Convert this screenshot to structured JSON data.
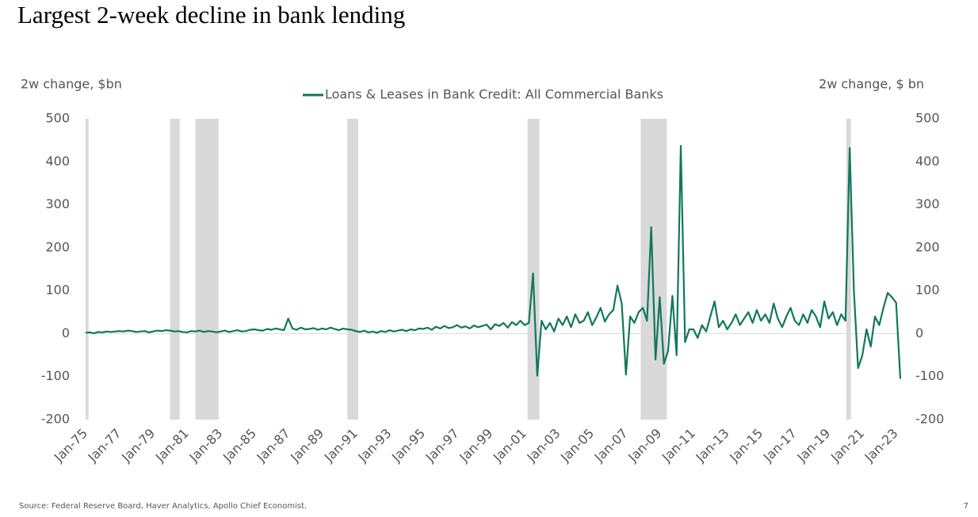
{
  "chart_data": {
    "type": "line",
    "title": "Largest 2-week decline in bank lending",
    "y_label": "2w change, $bn",
    "y2_label": "2w change, $ bn",
    "source": "Source: Federal Reserve Board, Haver Analytics, Apollo Chief Economist.",
    "page_number": "7",
    "categories": [
      "Jan-75",
      null,
      null,
      null,
      null,
      null,
      null,
      null,
      "Jan-77",
      null,
      null,
      null,
      null,
      null,
      null,
      null,
      "Jan-79",
      null,
      null,
      null,
      null,
      null,
      null,
      null,
      "Jan-81",
      null,
      null,
      null,
      null,
      null,
      null,
      null,
      "Jan-83",
      null,
      null,
      null,
      null,
      null,
      null,
      null,
      "Jan-85",
      null,
      null,
      null,
      null,
      null,
      null,
      null,
      "Jan-87",
      null,
      null,
      null,
      null,
      null,
      null,
      null,
      "Jan-89",
      null,
      null,
      null,
      null,
      null,
      null,
      null,
      "Jan-91",
      null,
      null,
      null,
      null,
      null,
      null,
      null,
      "Jan-93",
      null,
      null,
      null,
      null,
      null,
      null,
      null,
      "Jan-95",
      null,
      null,
      null,
      null,
      null,
      null,
      null,
      "Jan-97",
      null,
      null,
      null,
      null,
      null,
      null,
      null,
      "Jan-99",
      null,
      null,
      null,
      null,
      null,
      null,
      null,
      "Jan-01",
      null,
      null,
      null,
      null,
      null,
      null,
      null,
      "Jan-03",
      null,
      null,
      null,
      null,
      null,
      null,
      null,
      "Jan-05",
      null,
      null,
      null,
      null,
      null,
      null,
      null,
      "Jan-07",
      null,
      null,
      null,
      null,
      null,
      null,
      null,
      "Jan-09",
      null,
      null,
      null,
      null,
      null,
      null,
      null,
      "Jan-11",
      null,
      null,
      null,
      null,
      null,
      null,
      null,
      "Jan-13",
      null,
      null,
      null,
      null,
      null,
      null,
      null,
      "Jan-15",
      null,
      null,
      null,
      null,
      null,
      null,
      null,
      "Jan-17",
      null,
      null,
      null,
      null,
      null,
      null,
      null,
      "Jan-19",
      null,
      null,
      null,
      null,
      null,
      null,
      null,
      "Jan-21",
      null,
      null,
      null,
      null,
      null,
      null,
      null,
      "Jan-23",
      null
    ],
    "series": [
      {
        "name": "Loans & Leases in Bank Credit: All Commercial Banks",
        "color": "#11785a",
        "values": [
          2,
          3,
          1,
          4,
          3,
          5,
          4,
          5,
          6,
          5,
          7,
          6,
          4,
          5,
          6,
          3,
          5,
          7,
          6,
          8,
          7,
          5,
          6,
          4,
          3,
          6,
          5,
          7,
          4,
          6,
          5,
          3,
          5,
          7,
          4,
          6,
          8,
          5,
          6,
          9,
          10,
          8,
          7,
          11,
          9,
          12,
          10,
          8,
          35,
          12,
          9,
          14,
          10,
          11,
          13,
          9,
          12,
          10,
          14,
          11,
          8,
          12,
          10,
          9,
          6,
          4,
          7,
          3,
          5,
          2,
          6,
          4,
          8,
          5,
          7,
          9,
          6,
          10,
          8,
          12,
          11,
          14,
          9,
          16,
          12,
          18,
          13,
          15,
          20,
          14,
          17,
          12,
          19,
          15,
          18,
          21,
          10,
          22,
          18,
          25,
          14,
          27,
          20,
          30,
          20,
          25,
          140,
          -98,
          30,
          10,
          25,
          5,
          35,
          20,
          40,
          15,
          45,
          25,
          30,
          50,
          20,
          38,
          60,
          28,
          45,
          55,
          112,
          70,
          -95,
          40,
          25,
          50,
          60,
          30,
          248,
          -60,
          85,
          -70,
          -40,
          88,
          -50,
          437,
          -20,
          10,
          10,
          -10,
          20,
          5,
          40,
          75,
          15,
          30,
          10,
          25,
          45,
          20,
          35,
          50,
          25,
          55,
          30,
          45,
          25,
          70,
          35,
          15,
          40,
          60,
          30,
          20,
          45,
          25,
          55,
          40,
          15,
          75,
          35,
          50,
          20,
          45,
          30,
          432,
          100,
          -80,
          -50,
          10,
          -30,
          40,
          20,
          60,
          95,
          85,
          72,
          -105
        ]
      }
    ],
    "shaded_periods": [
      [
        0,
        0.7
      ],
      [
        20,
        22.3
      ],
      [
        26,
        31.5
      ],
      [
        62,
        64.6
      ],
      [
        104.7,
        107.5
      ],
      [
        131.5,
        137.7
      ],
      [
        180.2,
        181.3
      ]
    ],
    "shade_color": "#d9d9d9",
    "ylim": [
      -200,
      500
    ],
    "yticks": [
      -200,
      -100,
      0,
      100,
      200,
      300,
      400,
      500
    ],
    "y2lim": [
      -200,
      500
    ],
    "y2ticks": [
      -200,
      -100,
      0,
      100,
      200,
      300,
      400,
      500
    ],
    "zero_line": true
  }
}
